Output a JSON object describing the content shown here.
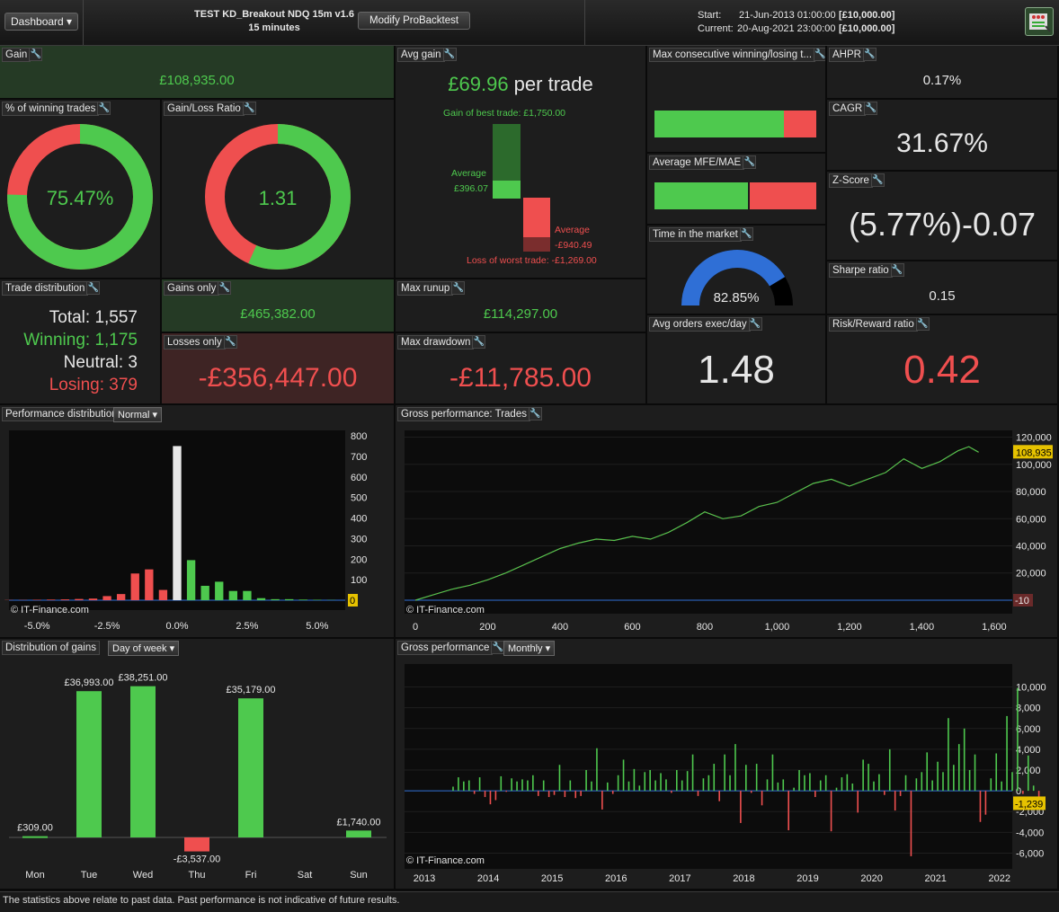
{
  "header": {
    "dashboard_label": "Dashboard ▾",
    "strategy_name": "TEST KD_Breakout NDQ 15m v1.6",
    "timeframe": "15 minutes",
    "modify_button": "Modify ProBacktest",
    "start_label": "Start:",
    "start_date": "21-Jun-2013 01:00:00",
    "start_capital": "[£10,000.00]",
    "current_label": "Current:",
    "current_date": "20-Aug-2021 23:00:00",
    "current_capital": "[£10,000.00]"
  },
  "gain": {
    "title": "Gain",
    "value": "£108,935.00"
  },
  "avg_gain": {
    "title": "Avg gain",
    "value": "£69.96",
    "suffix": " per trade",
    "best_label": "Gain of best trade: £1,750.00",
    "avg_gain_label": "Average",
    "avg_gain_value": "£396.07",
    "avg_loss_label": "Average",
    "avg_loss_value": "-£940.49",
    "worst_label": "Loss of worst trade: -£1,269.00"
  },
  "max_consec": {
    "title": "Max consecutive winning/losing t...",
    "win_fraction": 0.8
  },
  "ahpr": {
    "title": "AHPR",
    "value": "0.17%"
  },
  "pct_winning": {
    "title": "% of winning trades",
    "value": "75.47%",
    "fraction": 0.7547
  },
  "gain_loss_ratio": {
    "title": "Gain/Loss Ratio",
    "value": "1.31",
    "fraction": 0.566
  },
  "cagr": {
    "title": "CAGR",
    "value": "31.67%"
  },
  "mfe_mae": {
    "title": "Average MFE/MAE",
    "win_fraction": 0.58
  },
  "zscore": {
    "title": "Z-Score",
    "value": "(5.77%)",
    "value2": "-0.07"
  },
  "time_market": {
    "title": "Time in the market",
    "value": "82.85%",
    "fraction": 0.8285
  },
  "sharpe": {
    "title": "Sharpe ratio",
    "value": "0.15"
  },
  "trade_dist": {
    "title": "Trade distribution",
    "total_label": "Total:",
    "total": "1,557",
    "winning_label": "Winning:",
    "winning": "1,175",
    "neutral_label": "Neutral:",
    "neutral": "3",
    "losing_label": "Losing:",
    "losing": "379"
  },
  "gains_only": {
    "title": "Gains only",
    "value": "£465,382.00"
  },
  "losses_only": {
    "title": "Losses only",
    "value": "-£356,447.00"
  },
  "max_runup": {
    "title": "Max runup",
    "value": "£114,297.00"
  },
  "max_drawdown": {
    "title": "Max drawdown",
    "value": "-£11,785.00"
  },
  "avg_orders": {
    "title": "Avg orders exec/day",
    "value": "1.48"
  },
  "risk_reward": {
    "title": "Risk/Reward ratio",
    "value": "0.42"
  },
  "perf_dist": {
    "title": "Performance distribution",
    "mode": "Normal ▾",
    "watermark": "© IT-Finance.com",
    "zero_tag": "0"
  },
  "gross_trades": {
    "title": "Gross performance: Trades",
    "watermark": "© IT-Finance.com",
    "last_value_tag": "108,935",
    "min_tag": "-10"
  },
  "dist_gains": {
    "title": "Distribution of gains",
    "mode": "Day of week ▾"
  },
  "gross_monthly": {
    "title": "Gross performance",
    "mode": "Monthly ▾",
    "watermark": "© IT-Finance.com",
    "last_tag": "-1,239"
  },
  "footer": {
    "text": "The statistics above relate to past data. Past performance is not indicative of future results."
  },
  "colors": {
    "green": "#4ec94e",
    "red": "#ef4f4f",
    "blue": "#2f6fd6",
    "panel": "#1d1d1d",
    "gain_bg": "#253a25",
    "loss_bg": "#3e2424"
  },
  "chart_data": [
    {
      "type": "bar",
      "name_ref": "Performance distribution",
      "x_ticks": [
        "-5.0%",
        "-2.5%",
        "0.0%",
        "2.5%",
        "5.0%"
      ],
      "y_ticks": [
        "800",
        "700",
        "600",
        "500",
        "400",
        "300",
        "200",
        "100",
        "0"
      ],
      "ylim": [
        0,
        800
      ],
      "xlim": [
        -6.0,
        6.0
      ],
      "x": [
        -6.0,
        -5.5,
        -5.0,
        -4.5,
        -4.0,
        -3.5,
        -3.0,
        -2.5,
        -2.0,
        -1.5,
        -1.0,
        -0.5,
        0.0,
        0.5,
        1.0,
        1.5,
        2.0,
        2.5,
        3.0,
        3.5,
        4.0,
        4.5,
        5.0,
        5.5
      ],
      "values": [
        1,
        1,
        2,
        3,
        4,
        6,
        8,
        20,
        30,
        130,
        150,
        50,
        750,
        195,
        70,
        90,
        45,
        45,
        10,
        5,
        5,
        3,
        2,
        1
      ],
      "colors_note": "negative red, zero white, positive green"
    },
    {
      "type": "line",
      "name_ref": "Gross performance: Trades",
      "x_ticks": [
        "0",
        "200",
        "400",
        "600",
        "800",
        "1,000",
        "1,200",
        "1,400",
        "1,600"
      ],
      "y_ticks": [
        "120,000",
        "100,000",
        "80,000",
        "60,000",
        "40,000",
        "20,000"
      ],
      "xlim": [
        0,
        1650
      ],
      "ylim": [
        -10,
        125000
      ],
      "x": [
        0,
        50,
        100,
        150,
        200,
        250,
        300,
        350,
        400,
        450,
        500,
        550,
        600,
        650,
        700,
        750,
        800,
        850,
        900,
        950,
        1000,
        1050,
        1100,
        1150,
        1200,
        1250,
        1300,
        1350,
        1400,
        1450,
        1500,
        1530,
        1557
      ],
      "values": [
        0,
        4000,
        8000,
        11000,
        15000,
        20000,
        26000,
        32000,
        38000,
        42000,
        45000,
        44000,
        47000,
        45000,
        50000,
        57000,
        65000,
        60000,
        62000,
        69000,
        72000,
        79000,
        86000,
        89000,
        84000,
        89000,
        94000,
        104000,
        97000,
        102000,
        110000,
        113000,
        108935
      ]
    },
    {
      "type": "bar",
      "name_ref": "Distribution of gains",
      "categories": [
        "Mon",
        "Tue",
        "Wed",
        "Thu",
        "Fri",
        "Sat",
        "Sun"
      ],
      "values": [
        309,
        36993,
        38251,
        -3537,
        35179,
        0,
        1740
      ],
      "data_labels": [
        "£309.00",
        "£36,993.00",
        "£38,251.00",
        "-£3,537.00",
        "£35,179.00",
        "",
        "£1,740.00"
      ]
    },
    {
      "type": "bar",
      "name_ref": "Gross performance monthly",
      "x_ticks": [
        "2013",
        "2014",
        "2015",
        "2016",
        "2017",
        "2018",
        "2019",
        "2020",
        "2021",
        "2022"
      ],
      "y_ticks": [
        "10,000",
        "8,000",
        "6,000",
        "4,000",
        "2,000",
        "0",
        "-2,000",
        "-4,000",
        "-6,000"
      ],
      "ylim": [
        -7000,
        11000
      ],
      "xlim": [
        2013,
        2022.2
      ],
      "start_year": 2013.45,
      "values": [
        400,
        1300,
        900,
        1000,
        -300,
        1300,
        -600,
        -1300,
        -900,
        1400,
        -100,
        1200,
        900,
        1100,
        1000,
        1500,
        -500,
        1000,
        -600,
        -400,
        2500,
        -600,
        1000,
        -700,
        -500,
        2000,
        900,
        4100,
        -1800,
        800,
        -300,
        1500,
        3000,
        900,
        2100,
        500,
        1800,
        2000,
        1000,
        1700,
        1100,
        -200,
        2000,
        1000,
        1900,
        3500,
        -500,
        1200,
        1500,
        2600,
        -1000,
        3500,
        1500,
        4500,
        -3100,
        2500,
        -200,
        2600,
        -1400,
        1100,
        3500,
        800,
        1100,
        -3800,
        300,
        2000,
        1500,
        1700,
        -600,
        1000,
        1500,
        -3900,
        300,
        1300,
        1600,
        700,
        -2100,
        3000,
        2600,
        900,
        1600,
        -400,
        4000,
        -1900,
        -500,
        1500,
        -6300,
        1200,
        1800,
        3700,
        1000,
        2800,
        1800,
        7000,
        2500,
        4500,
        6000,
        2000,
        3500,
        -3000,
        -2300,
        1200,
        3600,
        900,
        7200,
        1800,
        9900,
        -300,
        3400,
        500,
        -1239
      ]
    }
  ]
}
